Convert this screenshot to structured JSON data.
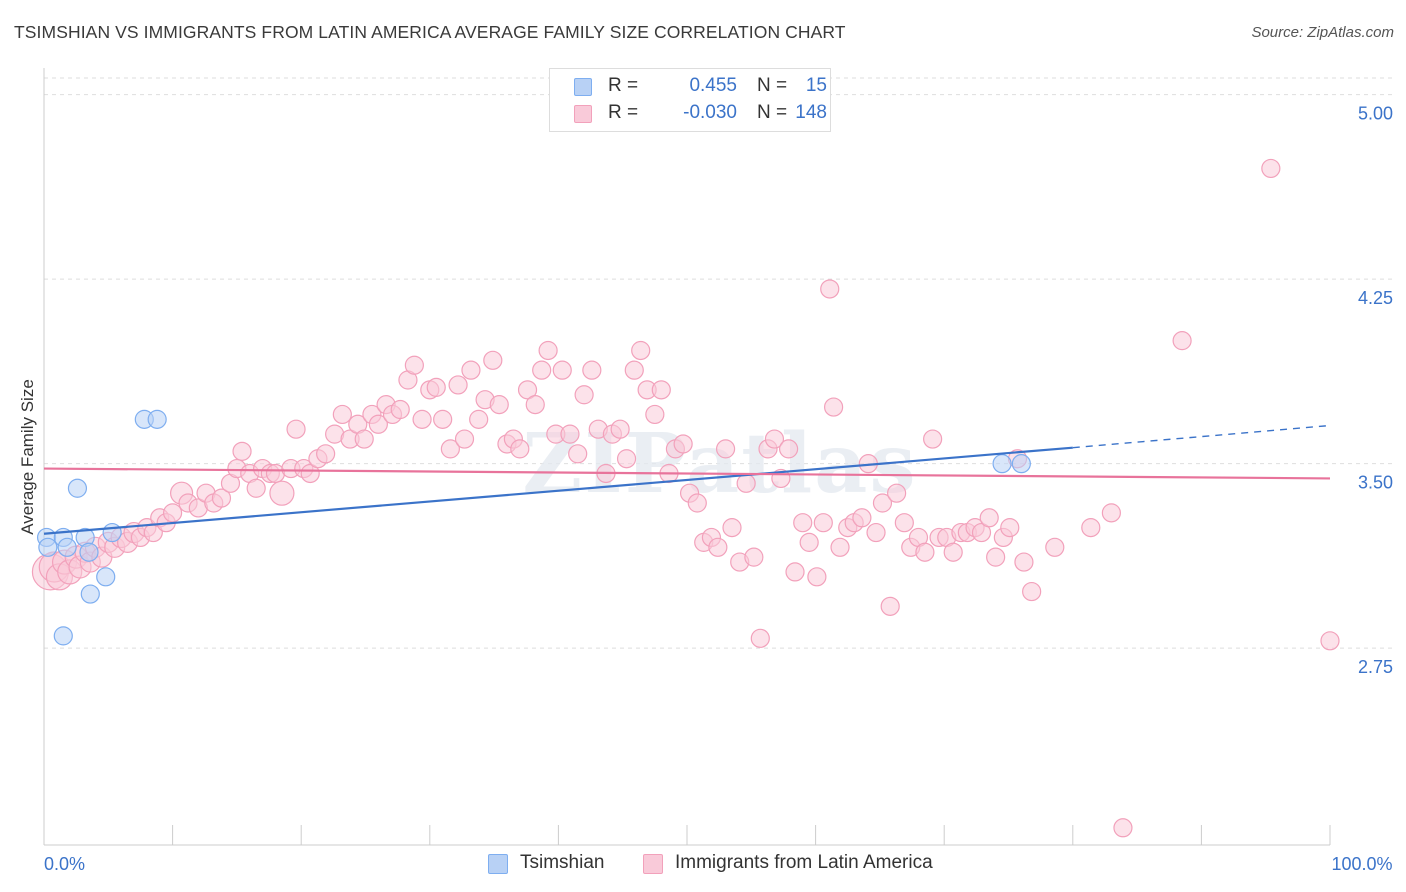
{
  "chart_data": {
    "type": "scatter",
    "title": "TSIMSHIAN VS IMMIGRANTS FROM LATIN AMERICA AVERAGE FAMILY SIZE CORRELATION CHART",
    "source": "Source: ZipAtlas.com",
    "watermark": "ZIPatlas",
    "xlabel": "",
    "ylabel": "Average Family Size",
    "xlim": [
      0,
      100
    ],
    "ylim": [
      1.95,
      5.1
    ],
    "x_tick_labels": [
      {
        "value": 0,
        "label": "0.0%"
      },
      {
        "value": 100,
        "label": "100.0%"
      }
    ],
    "y_ticks": [
      {
        "value": 2.75,
        "label": "2.75"
      },
      {
        "value": 3.5,
        "label": "3.50"
      },
      {
        "value": 4.25,
        "label": "4.25"
      },
      {
        "value": 5.0,
        "label": "5.00"
      }
    ],
    "legend": [
      {
        "series": "tsimshian",
        "r_label": "R =",
        "r_value": "0.455",
        "n_label": "N =",
        "n_value": "15"
      },
      {
        "series": "latin",
        "r_label": "R =",
        "r_value": "-0.030",
        "n_label": "N =",
        "n_value": "148"
      }
    ],
    "series": [
      {
        "name": "Tsimshian",
        "key": "tsimshian",
        "color": "#7eaef0",
        "fill": "#b8d1f5",
        "line_color": "#3b73c9",
        "trend": {
          "x0": 0,
          "y0": 3.215,
          "x1": 80,
          "y1": 3.565,
          "dash_x1": 100,
          "dash_y1": 3.655
        },
        "points": [
          [
            0.2,
            3.2,
            9
          ],
          [
            0.3,
            3.16,
            9
          ],
          [
            1.5,
            3.2,
            9
          ],
          [
            1.8,
            3.16,
            9
          ],
          [
            2.6,
            3.4,
            9
          ],
          [
            3.2,
            3.2,
            9
          ],
          [
            3.5,
            3.14,
            9
          ],
          [
            4.8,
            3.04,
            9
          ],
          [
            5.3,
            3.22,
            9
          ],
          [
            3.6,
            2.97,
            9
          ],
          [
            1.5,
            2.8,
            9
          ],
          [
            7.8,
            3.68,
            9
          ],
          [
            8.8,
            3.68,
            9
          ],
          [
            74.5,
            3.5,
            9
          ],
          [
            76.0,
            3.5,
            9
          ]
        ]
      },
      {
        "name": "Immigrants from Latin America",
        "key": "latin",
        "color": "#f2a1bb",
        "fill": "#f9cad9",
        "line_color": "#e8739b",
        "trend": {
          "x0": 0,
          "y0": 3.48,
          "x1": 100,
          "y1": 3.44
        },
        "points": [
          [
            0.5,
            3.06,
            18
          ],
          [
            0.8,
            3.08,
            15
          ],
          [
            1.2,
            3.04,
            13
          ],
          [
            1.6,
            3.1,
            12
          ],
          [
            2.0,
            3.06,
            12
          ],
          [
            2.5,
            3.12,
            11
          ],
          [
            2.8,
            3.08,
            11
          ],
          [
            3.2,
            3.14,
            10
          ],
          [
            3.6,
            3.1,
            10
          ],
          [
            4.0,
            3.16,
            10
          ],
          [
            4.5,
            3.12,
            10
          ],
          [
            5.0,
            3.18,
            10
          ],
          [
            5.5,
            3.16,
            10
          ],
          [
            6.0,
            3.2,
            10
          ],
          [
            6.5,
            3.18,
            10
          ],
          [
            7.0,
            3.22,
            10
          ],
          [
            7.5,
            3.2,
            9
          ],
          [
            8.0,
            3.24,
            9
          ],
          [
            8.5,
            3.22,
            9
          ],
          [
            9.0,
            3.28,
            9
          ],
          [
            9.5,
            3.26,
            9
          ],
          [
            10.0,
            3.3,
            9
          ],
          [
            10.7,
            3.38,
            11
          ],
          [
            11.2,
            3.34,
            9
          ],
          [
            12.0,
            3.32,
            9
          ],
          [
            12.6,
            3.38,
            9
          ],
          [
            13.2,
            3.34,
            9
          ],
          [
            13.8,
            3.36,
            9
          ],
          [
            14.5,
            3.42,
            9
          ],
          [
            15.0,
            3.48,
            9
          ],
          [
            15.4,
            3.55,
            9
          ],
          [
            16.0,
            3.46,
            9
          ],
          [
            16.5,
            3.4,
            9
          ],
          [
            17.0,
            3.48,
            9
          ],
          [
            17.6,
            3.46,
            9
          ],
          [
            18.0,
            3.46,
            9
          ],
          [
            18.5,
            3.38,
            12
          ],
          [
            19.2,
            3.48,
            9
          ],
          [
            19.6,
            3.64,
            9
          ],
          [
            20.2,
            3.48,
            9
          ],
          [
            20.7,
            3.46,
            9
          ],
          [
            21.3,
            3.52,
            9
          ],
          [
            21.9,
            3.54,
            9
          ],
          [
            22.6,
            3.62,
            9
          ],
          [
            23.2,
            3.7,
            9
          ],
          [
            23.8,
            3.6,
            9
          ],
          [
            24.4,
            3.66,
            9
          ],
          [
            24.9,
            3.6,
            9
          ],
          [
            25.5,
            3.7,
            9
          ],
          [
            26.0,
            3.66,
            9
          ],
          [
            26.6,
            3.74,
            9
          ],
          [
            27.1,
            3.7,
            9
          ],
          [
            27.7,
            3.72,
            9
          ],
          [
            28.3,
            3.84,
            9
          ],
          [
            28.8,
            3.9,
            9
          ],
          [
            29.4,
            3.68,
            9
          ],
          [
            30.0,
            3.8,
            9
          ],
          [
            30.5,
            3.81,
            9
          ],
          [
            31.0,
            3.68,
            9
          ],
          [
            31.6,
            3.56,
            9
          ],
          [
            32.2,
            3.82,
            9
          ],
          [
            32.7,
            3.6,
            9
          ],
          [
            33.2,
            3.88,
            9
          ],
          [
            33.8,
            3.68,
            9
          ],
          [
            34.3,
            3.76,
            9
          ],
          [
            34.9,
            3.92,
            9
          ],
          [
            35.4,
            3.74,
            9
          ],
          [
            36.0,
            3.58,
            9
          ],
          [
            36.5,
            3.6,
            9
          ],
          [
            37.0,
            3.56,
            9
          ],
          [
            37.6,
            3.8,
            9
          ],
          [
            38.2,
            3.74,
            9
          ],
          [
            38.7,
            3.88,
            9
          ],
          [
            39.2,
            3.96,
            9
          ],
          [
            39.8,
            3.62,
            9
          ],
          [
            40.3,
            3.88,
            9
          ],
          [
            40.9,
            3.62,
            9
          ],
          [
            41.5,
            3.54,
            9
          ],
          [
            42.0,
            3.78,
            9
          ],
          [
            42.6,
            3.88,
            9
          ],
          [
            43.1,
            3.64,
            9
          ],
          [
            43.7,
            3.46,
            9
          ],
          [
            44.2,
            3.62,
            9
          ],
          [
            44.8,
            3.64,
            9
          ],
          [
            45.3,
            3.52,
            9
          ],
          [
            45.9,
            3.88,
            9
          ],
          [
            46.4,
            3.96,
            9
          ],
          [
            46.9,
            3.8,
            9
          ],
          [
            47.5,
            3.7,
            9
          ],
          [
            48.0,
            3.8,
            9
          ],
          [
            48.6,
            3.46,
            9
          ],
          [
            49.1,
            3.56,
            9
          ],
          [
            49.7,
            3.58,
            9
          ],
          [
            50.2,
            3.38,
            9
          ],
          [
            50.8,
            3.34,
            9
          ],
          [
            51.3,
            3.18,
            9
          ],
          [
            51.9,
            3.2,
            9
          ],
          [
            52.4,
            3.16,
            9
          ],
          [
            53.0,
            3.56,
            9
          ],
          [
            53.5,
            3.24,
            9
          ],
          [
            54.1,
            3.1,
            9
          ],
          [
            54.6,
            3.42,
            9
          ],
          [
            55.2,
            3.12,
            9
          ],
          [
            55.7,
            2.79,
            9
          ],
          [
            56.3,
            3.56,
            9
          ],
          [
            56.8,
            3.6,
            9
          ],
          [
            57.3,
            3.44,
            9
          ],
          [
            57.9,
            3.56,
            9
          ],
          [
            58.4,
            3.06,
            9
          ],
          [
            59.0,
            3.26,
            9
          ],
          [
            59.5,
            3.18,
            9
          ],
          [
            60.1,
            3.04,
            9
          ],
          [
            60.6,
            3.26,
            9
          ],
          [
            61.1,
            4.21,
            9
          ],
          [
            61.4,
            3.73,
            9
          ],
          [
            61.9,
            3.16,
            9
          ],
          [
            62.5,
            3.24,
            9
          ],
          [
            63.0,
            3.26,
            9
          ],
          [
            63.6,
            3.28,
            9
          ],
          [
            64.1,
            3.5,
            9
          ],
          [
            64.7,
            3.22,
            9
          ],
          [
            65.2,
            3.34,
            9
          ],
          [
            65.8,
            2.92,
            9
          ],
          [
            66.3,
            3.38,
            9
          ],
          [
            66.9,
            3.26,
            9
          ],
          [
            67.4,
            3.16,
            9
          ],
          [
            68.0,
            3.2,
            9
          ],
          [
            68.5,
            3.14,
            9
          ],
          [
            69.1,
            3.6,
            9
          ],
          [
            69.6,
            3.2,
            9
          ],
          [
            70.2,
            3.2,
            9
          ],
          [
            70.7,
            3.14,
            9
          ],
          [
            71.3,
            3.22,
            9
          ],
          [
            71.8,
            3.22,
            9
          ],
          [
            72.4,
            3.24,
            9
          ],
          [
            72.9,
            3.22,
            9
          ],
          [
            73.5,
            3.28,
            9
          ],
          [
            74.0,
            3.12,
            9
          ],
          [
            74.6,
            3.2,
            9
          ],
          [
            75.1,
            3.24,
            9
          ],
          [
            75.7,
            3.52,
            9
          ],
          [
            76.2,
            3.1,
            9
          ],
          [
            76.8,
            2.98,
            9
          ],
          [
            78.6,
            3.16,
            9
          ],
          [
            81.4,
            3.24,
            9
          ],
          [
            83.0,
            3.3,
            9
          ],
          [
            88.5,
            4.0,
            9
          ],
          [
            95.4,
            4.7,
            9
          ],
          [
            100.0,
            2.78,
            9
          ],
          [
            83.9,
            2.02,
            9
          ]
        ]
      }
    ]
  }
}
